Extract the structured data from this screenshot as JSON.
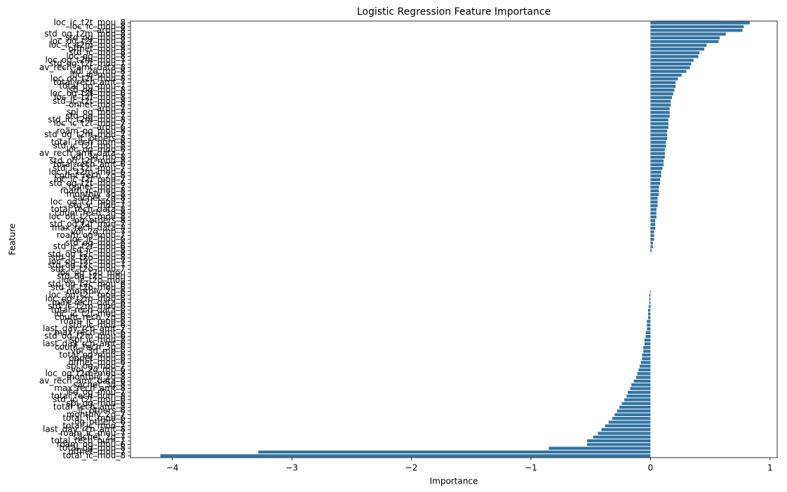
{
  "chart_data": {
    "type": "barh",
    "title": "Logistic Regression Feature Importance",
    "xlabel": "Importance",
    "ylabel": "Feature",
    "color": "#3274a1",
    "categories": [
      "loc_ic_t2t_mou_8",
      "loc_ic_mou_8",
      "arpu_8",
      "std_og_t2m_mou_8",
      "std_og_mou_8",
      "loc_og_t2t_mou_8",
      "loc_ic_t2m_mou_8",
      "offnet_mou_8",
      "std_ic_mou_8",
      "loc_og_mou_8",
      "loc_og_t2m_mou_7",
      "std_og_t2t_mou_7",
      "av_rech_amt_data_8",
      "vol_2g_mb_8",
      "loc_ic_mou_7",
      "loc_og_t2f_mou_8",
      "total_rech_amt_7",
      "total_og_mou_7",
      "isd_og_mou_8",
      "loc_og_t2t_mou_6",
      "loc_ic_t2f_mou_8",
      "std_ic_t2t_mou_8",
      "onnet_mou_8",
      "arpu_7",
      "spl_og_mou_8",
      "std_og_mou_7",
      "std_ic_t2m_mou_8",
      "loc_ic_t2t_mou_7",
      "arpu_6",
      "roam_og_mou_8",
      "std_og_t2m_mou_7",
      "ic_others_8",
      "total_rech_num_6",
      "std_ic_t2f_mou_8",
      "loc_og_mou_6",
      "av_rech_amt_data_7",
      "vol_3g_mb_8",
      "std_og_t2f_mou_8",
      "total_rech_amt_6",
      "std_ic_t2t_mou_7",
      "loc_ic_t2m_mou_6",
      "count_rech_2g_8",
      "loc_ic_t2f_mou_7",
      "std_og_t2t_mou_6",
      "onnet_mou_7",
      "roam_ic_mou_8",
      "monthly_3g_8",
      "sachet_2g_8",
      "loc_og_t2f_mou_7",
      "std_ic_mou_7",
      "total_rech_data_8",
      "count_rech_3g_8",
      "loc_og_t2c_mou_8",
      "og_others_8",
      "std_og_t2f_mou_7",
      "max_rech_data_8",
      "vol_2g_mb_7",
      "roam_og_mou_7",
      "loc_ic_mou_6",
      "std_og_mou_6",
      "std_ic_t2f_mou_6",
      "isd_ic_mou_8",
      "std_og_t2c_mou_8",
      "std_ic_t2o_mou_8",
      "loc_og_t2c_mou_7",
      "std_og_t2c_mou_7",
      "std_ic_t2o_mou_7",
      "loc_og_t2o_mou",
      "std_og_t2o_mou",
      "loc_ic_t2o_mou",
      "std_og_t2c_mou_6",
      "std_ic_t2o_mou_6",
      "monthly_2g_6",
      "loc_og_t2c_mou_6",
      "loc_og_t2m_mou_6",
      "max_rech_data_6",
      "std_ic_t2m_mou_6",
      "total_rech_data_6",
      "loc_ic_t2f_mou_6",
      "count_rech_2g_6",
      "roam_ic_mou_6",
      "std_ic_mou_6",
      "last_day_rch_amt_7",
      "max_rech_amt_6",
      "std_og_t2m_mou_6",
      "spl_ic_mou_8",
      "last_day_rch_amt_6",
      "count_rech_3g_6",
      "vol_3g_mb_6",
      "total_og_mou_6",
      "onnet_mou_6",
      "offnet_mou_6",
      "spl_og_mou_7",
      "vol_2g_mb_6",
      "loc_og_t2m_mou_8",
      "monthly_2g_8",
      "av_rech_amt_data_6",
      "sachet_3g_8",
      "max_rech_amt_8",
      "isd_og_mou_7",
      "total_rech_num_8",
      "std_ic_t2t_mou_6",
      "spl_og_mou_6",
      "total_rech_amt_8",
      "ic_others_6",
      "monthly_2g_7",
      "total_ic_mou_6",
      "og_others_6",
      "total_ic_mou_7",
      "last_day_rch_amt_8",
      "roam_ic_mou_7",
      "sachet_2g_7",
      "total_rech_num_7",
      "roam_og_mou_6",
      "total_og_mou_8",
      "offnet_mou_7",
      "total_ic_mou_8"
    ],
    "values": [
      0.83,
      0.78,
      0.77,
      0.63,
      0.58,
      0.57,
      0.47,
      0.45,
      0.41,
      0.4,
      0.36,
      0.34,
      0.33,
      0.3,
      0.26,
      0.23,
      0.21,
      0.21,
      0.2,
      0.19,
      0.18,
      0.17,
      0.17,
      0.16,
      0.16,
      0.16,
      0.15,
      0.15,
      0.15,
      0.14,
      0.14,
      0.14,
      0.13,
      0.13,
      0.12,
      0.12,
      0.12,
      0.11,
      0.11,
      0.1,
      0.09,
      0.09,
      0.08,
      0.08,
      0.07,
      0.07,
      0.07,
      0.06,
      0.06,
      0.06,
      0.05,
      0.05,
      0.05,
      0.04,
      0.04,
      0.04,
      0.03,
      0.03,
      0.03,
      0.02,
      0.02,
      0.01,
      0,
      0,
      0,
      0,
      0,
      0,
      0,
      0,
      0,
      0,
      -0.005,
      -0.01,
      -0.01,
      -0.01,
      -0.015,
      -0.02,
      -0.02,
      -0.02,
      -0.03,
      -0.03,
      -0.03,
      -0.04,
      -0.04,
      -0.05,
      -0.05,
      -0.06,
      -0.06,
      -0.07,
      -0.07,
      -0.08,
      -0.09,
      -0.1,
      -0.11,
      -0.12,
      -0.14,
      -0.16,
      -0.17,
      -0.19,
      -0.2,
      -0.22,
      -0.24,
      -0.26,
      -0.28,
      -0.3,
      -0.32,
      -0.35,
      -0.38,
      -0.41,
      -0.44,
      -0.48,
      -0.53,
      -0.53,
      -0.85,
      -3.28,
      -4.1
    ],
    "xlim": [
      -4.35,
      1.06
    ],
    "xticks": [
      {
        "value": -4,
        "label": "−4"
      },
      {
        "value": -3,
        "label": "−3"
      },
      {
        "value": -2,
        "label": "−2"
      },
      {
        "value": -1,
        "label": "−1"
      },
      0,
      1
    ]
  }
}
